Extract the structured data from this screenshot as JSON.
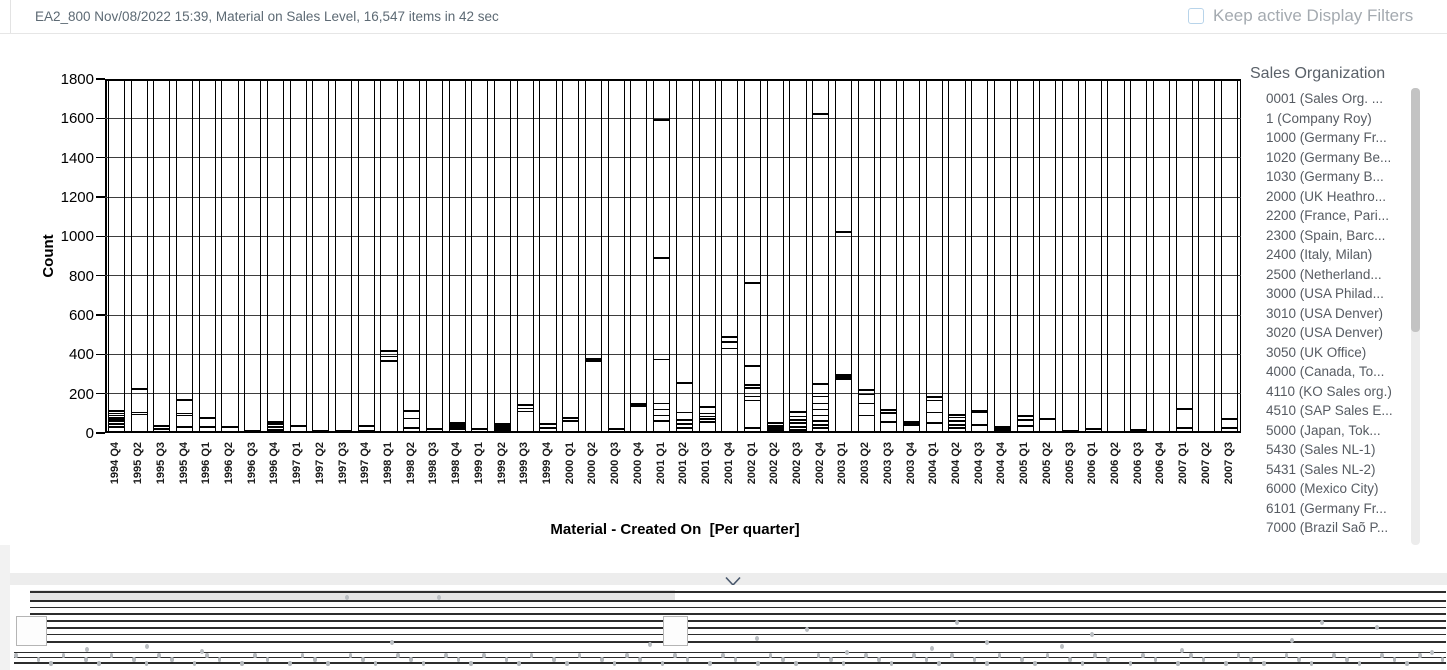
{
  "header": {
    "title": "EA2_800 Nov/08/2022 15:39, Material on Sales Level, 16,547 items in 42 sec",
    "keep_filters_label": "Keep active Display Filters",
    "keep_filters_checked": false
  },
  "sales_panel": {
    "title": "Sales Organization",
    "items": [
      "0001 (Sales Org. ...",
      "1 (Company Roy)",
      "1000 (Germany Fr...",
      "1020 (Germany Be...",
      "1030 (Germany B...",
      "2000 (UK Heathro...",
      "2200 (France, Pari...",
      "2300 (Spain, Barc...",
      "2400 (Italy, Milan)",
      "2500 (Netherland...",
      "3000 (USA Philad...",
      "3010 (USA Denver)",
      "3020 (USA Denver)",
      "3050 (UK Office)",
      "4000 (Canada, To...",
      "4110 (KO Sales org.)",
      "4510 (SAP Sales E...",
      "5000 (Japan, Tok...",
      "5430 (Sales NL-1)",
      "5431 (Sales NL-2)",
      "6000 (Mexico City)",
      "6101 (Germany Fr...",
      "7000 (Brazil Saõ P..."
    ]
  },
  "chart_data": {
    "type": "bar",
    "stacked": true,
    "title": "",
    "xlabel": "Material - Created On  [Per quarter]",
    "ylabel": "Count",
    "ylim": [
      0,
      1800
    ],
    "ytick_interval": 200,
    "grid": true,
    "legend_position": "none",
    "categories": [
      "1994 Q4",
      "1995 Q2",
      "1995 Q3",
      "1995 Q4",
      "1996 Q1",
      "1996 Q2",
      "1996 Q3",
      "1996 Q4",
      "1997 Q1",
      "1997 Q2",
      "1997 Q3",
      "1997 Q4",
      "1998 Q1",
      "1998 Q2",
      "1998 Q3",
      "1998 Q4",
      "1999 Q1",
      "1999 Q2",
      "1999 Q3",
      "1999 Q4",
      "2000 Q1",
      "2000 Q2",
      "2000 Q3",
      "2000 Q4",
      "2001 Q1",
      "2001 Q2",
      "2001 Q3",
      "2001 Q4",
      "2002 Q1",
      "2002 Q2",
      "2002 Q3",
      "2002 Q4",
      "2003 Q1",
      "2003 Q2",
      "2003 Q3",
      "2003 Q4",
      "2004 Q1",
      "2004 Q2",
      "2004 Q3",
      "2004 Q4",
      "2005 Q1",
      "2005 Q2",
      "2005 Q3",
      "2006 Q1",
      "2006 Q2",
      "2006 Q3",
      "2006 Q4",
      "2007 Q1",
      "2007 Q2",
      "2007 Q3"
    ],
    "totals": [
      110,
      225,
      35,
      170,
      75,
      30,
      10,
      57,
      36,
      10,
      8,
      35,
      415,
      110,
      20,
      52,
      18,
      46,
      142,
      48,
      75,
      376,
      22,
      145,
      1592,
      254,
      130,
      490,
      765,
      50,
      108,
      1620,
      1022,
      220,
      117,
      56,
      185,
      92,
      112,
      31,
      87,
      70,
      8,
      20,
      5,
      15,
      5,
      122,
      5,
      70
    ],
    "segment_boundaries": [
      [
        30,
        45,
        60,
        70,
        80,
        90,
        100,
        110
      ],
      [
        95,
        105,
        225
      ],
      [
        20,
        35
      ],
      [
        30,
        90,
        100,
        170
      ],
      [
        30,
        75
      ],
      [
        30
      ],
      [
        10
      ],
      [
        15,
        30,
        45,
        57
      ],
      [
        36
      ],
      [
        10
      ],
      [
        8
      ],
      [
        10,
        35
      ],
      [
        365,
        390,
        415
      ],
      [
        25,
        75,
        110
      ],
      [
        20
      ],
      [
        20,
        30,
        40,
        52
      ],
      [
        18
      ],
      [
        15,
        25,
        35,
        46
      ],
      [
        110,
        125,
        142
      ],
      [
        25,
        48
      ],
      [
        60,
        75
      ],
      [
        365,
        376
      ],
      [
        22
      ],
      [
        138,
        145
      ],
      [
        60,
        90,
        120,
        150,
        375,
        890,
        1592
      ],
      [
        25,
        45,
        65,
        105,
        254
      ],
      [
        55,
        70,
        85,
        100,
        130
      ],
      [
        430,
        462,
        490
      ],
      [
        25,
        165,
        185,
        230,
        245,
        340,
        765
      ],
      [
        15,
        25,
        35,
        50
      ],
      [
        15,
        30,
        50,
        66,
        83,
        108
      ],
      [
        25,
        40,
        60,
        90,
        120,
        150,
        185,
        202,
        248,
        1620
      ],
      [
        275,
        285,
        295,
        1022
      ],
      [
        90,
        150,
        195,
        220
      ],
      [
        55,
        102,
        117
      ],
      [
        40,
        48,
        56
      ],
      [
        50,
        105,
        165,
        185
      ],
      [
        25,
        40,
        60,
        80,
        92
      ],
      [
        40,
        104,
        112
      ],
      [
        10,
        20,
        31
      ],
      [
        35,
        65,
        87
      ],
      [
        8,
        70
      ],
      [
        8
      ],
      [
        20
      ],
      [
        5
      ],
      [
        15
      ],
      [
        5
      ],
      [
        25,
        122
      ],
      [
        5
      ],
      [
        25,
        70
      ]
    ]
  },
  "collapse_bar": {
    "icon": "chevron-down-icon"
  },
  "colors": {
    "header_text": "#5d6a74",
    "muted_label": "#a4aab0",
    "checkbox_border": "#b8d4ea",
    "panel_text": "#565b62",
    "grid_line": "#3d3d3d",
    "bar_line": "#000000",
    "divider_strip": "#ededed",
    "scroll_thumb": "#c3c3c3"
  }
}
